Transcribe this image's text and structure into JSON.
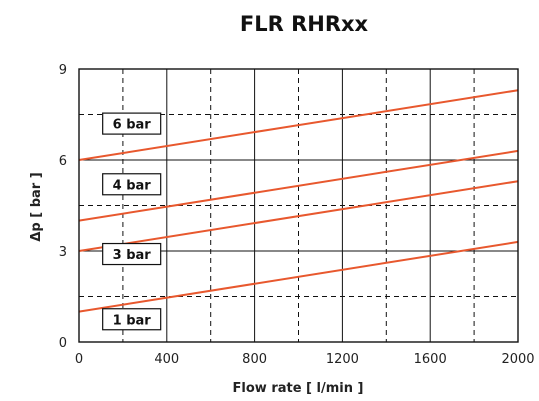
{
  "chart_data": {
    "type": "line",
    "title": "FLR RHRxx",
    "xlabel": "Flow rate [ l/min ]",
    "ylabel": "Δp [ bar ]",
    "xlim": [
      0,
      2000
    ],
    "ylim": [
      0,
      9
    ],
    "x_ticks": [
      "0",
      "400",
      "800",
      "1200",
      "1600",
      "2000"
    ],
    "y_ticks": [
      "0",
      "3",
      "6",
      "9"
    ],
    "grid": "major solid, minor dashed",
    "x": [
      0,
      2000
    ],
    "series": [
      {
        "name": "1 bar",
        "values": [
          1.0,
          3.3
        ],
        "label_x": 240
      },
      {
        "name": "3 bar",
        "values": [
          3.0,
          5.3
        ],
        "label_x": 240
      },
      {
        "name": "4 bar",
        "values": [
          4.0,
          6.3
        ],
        "label_x": 240
      },
      {
        "name": "6 bar",
        "values": [
          6.0,
          8.3
        ],
        "label_x": 240
      }
    ],
    "label_y": [
      0.75,
      2.9,
      5.2,
      7.2
    ],
    "line_color": "#e8582e"
  }
}
